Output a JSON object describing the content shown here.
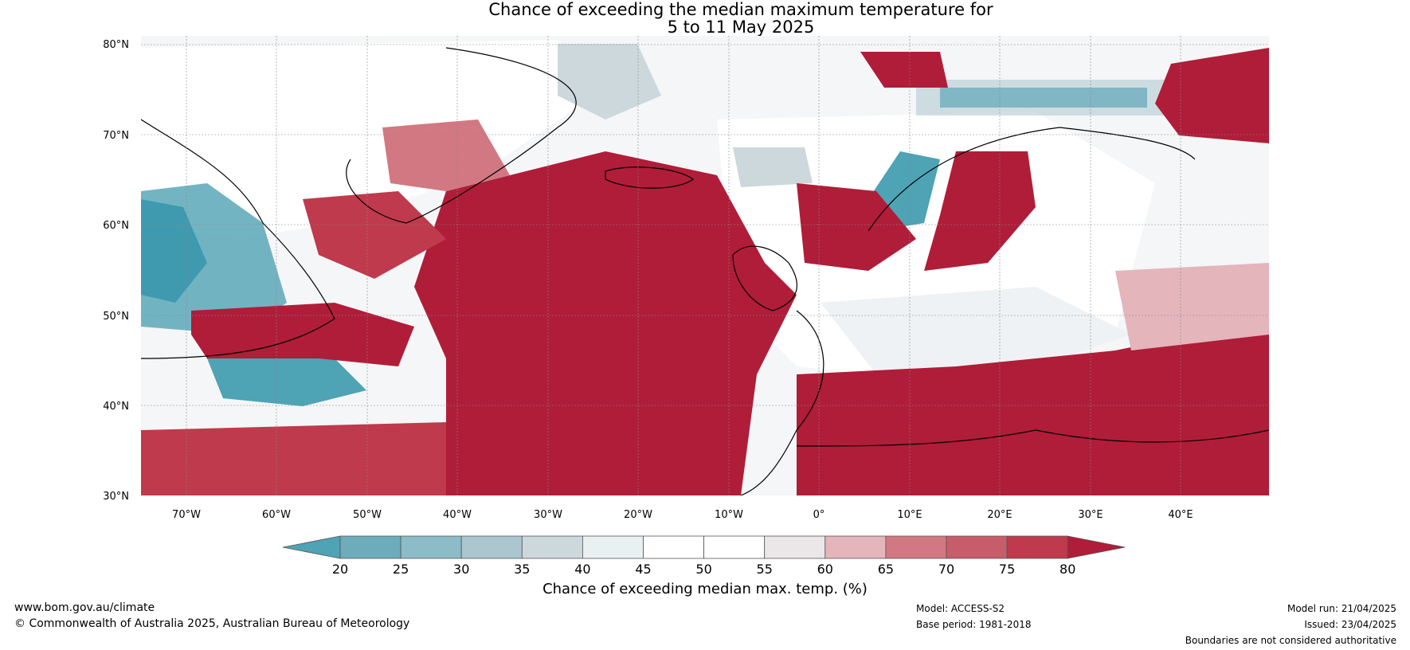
{
  "title": {
    "line1": "Chance of exceeding the median maximum temperature for",
    "line2": "5 to 11 May 2025"
  },
  "latitude_labels": [
    "80°N",
    "70°N",
    "60°N",
    "50°N",
    "40°N",
    "30°N"
  ],
  "longitude_labels": [
    "70°W",
    "60°W",
    "50°W",
    "40°W",
    "30°W",
    "20°W",
    "10°W",
    "0°",
    "10°E",
    "20°E",
    "30°E",
    "40°E"
  ],
  "colorbar": {
    "title": "Chance of exceeding median max. temp. (%)",
    "ticks": [
      "20",
      "25",
      "30",
      "35",
      "40",
      "45",
      "50",
      "55",
      "60",
      "65",
      "70",
      "75",
      "80"
    ],
    "colors": [
      "#4ea3b5",
      "#6dacba",
      "#8bbcc8",
      "#abc6cf",
      "#ccd8dc",
      "#e8f0f2",
      "#ffffff",
      "#ffffff",
      "#ebe6e7",
      "#e4b5bb",
      "#d27883",
      "#c75d6b",
      "#bf3a4c",
      "#b01d38"
    ]
  },
  "footer": {
    "website": "www.bom.gov.au/climate",
    "copyright": "© Commonwealth of Australia 2025, Australian Bureau of Meteorology",
    "model": "Model: ACCESS-S2",
    "base_period": "Base period: 1981-2018",
    "model_run": "Model run: 21/04/2025",
    "issued": "Issued: 23/04/2025",
    "disclaimer": "Boundaries are not considered authoritative"
  }
}
